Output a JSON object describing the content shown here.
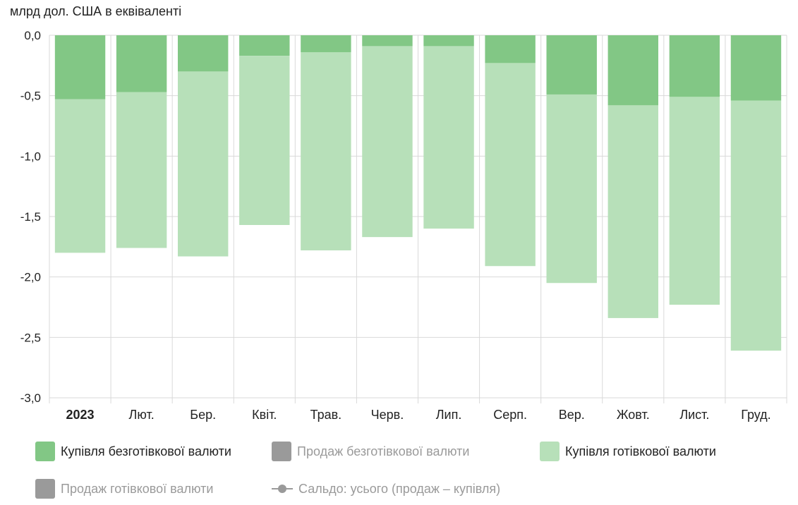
{
  "unit_label": "млрд дол. США в еквіваленті",
  "chart_data": {
    "type": "bar",
    "stacked": true,
    "categories": [
      "2023",
      "Лют.",
      "Бер.",
      "Квіт.",
      "Трав.",
      "Черв.",
      "Лип.",
      "Серп.",
      "Вер.",
      "Жовт.",
      "Лист.",
      "Груд."
    ],
    "ylim": [
      -3.0,
      0.0
    ],
    "yticks": [
      "0,0",
      "-0,5",
      "-1,0",
      "-1,5",
      "-2,0",
      "-2,5",
      "-3,0"
    ],
    "ytick_values": [
      0,
      -0.5,
      -1.0,
      -1.5,
      -2.0,
      -2.5,
      -3.0
    ],
    "grid": true,
    "legend_position": "bottom",
    "series": [
      {
        "name": "Купівля безготівкової валюти",
        "color": "#82c785",
        "values": [
          -0.53,
          -0.47,
          -0.3,
          -0.17,
          -0.14,
          -0.09,
          -0.09,
          -0.23,
          -0.49,
          -0.58,
          -0.51,
          -0.54
        ]
      },
      {
        "name": "Купівля готівкової валюти",
        "color": "#b7e0b9",
        "values": [
          -1.27,
          -1.29,
          -1.53,
          -1.4,
          -1.64,
          -1.58,
          -1.51,
          -1.68,
          -1.56,
          -1.76,
          -1.72,
          -2.07
        ]
      }
    ],
    "legend": [
      {
        "name": "Купівля безготівкової валюти",
        "color": "#82c785",
        "active": true,
        "marker": "box"
      },
      {
        "name": "Продаж безготівкової валюти",
        "color": "#9a9a9a",
        "active": false,
        "marker": "box"
      },
      {
        "name": "Купівля готівкової валюти",
        "color": "#b7e0b9",
        "active": true,
        "marker": "box"
      },
      {
        "name": "Продаж готівкової валюти",
        "color": "#9a9a9a",
        "active": false,
        "marker": "box"
      },
      {
        "name": "Сальдо: усього (продаж – купівля)",
        "color": "#9a9a9a",
        "active": false,
        "marker": "line"
      }
    ]
  }
}
